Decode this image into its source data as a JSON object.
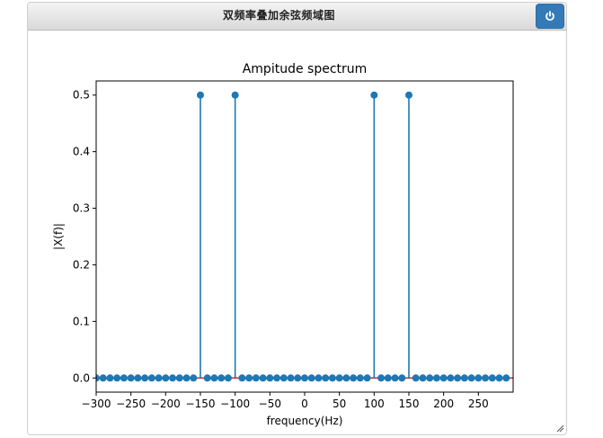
{
  "window": {
    "title": "双频率叠加余弦频域图",
    "power_icon": "power-icon"
  },
  "chart_data": {
    "type": "stem",
    "title": "Ampitude spectrum",
    "xlabel": "frequency(Hz)",
    "ylabel": "|X(f)|",
    "xlim": [
      -300,
      300
    ],
    "ylim": [
      -0.025,
      0.525
    ],
    "xticks": [
      -300,
      -250,
      -200,
      -150,
      -100,
      -50,
      0,
      50,
      100,
      150,
      200,
      250
    ],
    "yticks": [
      0.0,
      0.1,
      0.2,
      0.3,
      0.4,
      0.5
    ],
    "xtick_labels": [
      "−300",
      "−250",
      "−200",
      "−150",
      "−100",
      "−50",
      "0",
      "50",
      "100",
      "150",
      "200",
      "250"
    ],
    "ytick_labels": [
      "0.0",
      "0.1",
      "0.2",
      "0.3",
      "0.4",
      "0.5"
    ],
    "x_start": -300,
    "x_step": 10,
    "x_count": 60,
    "peaks": [
      {
        "x": -150,
        "y": 0.5
      },
      {
        "x": -100,
        "y": 0.5
      },
      {
        "x": 100,
        "y": 0.5
      },
      {
        "x": 150,
        "y": 0.5
      }
    ],
    "stem_color": "#1f77b4",
    "baseline_color": "#d62728",
    "grid": false
  }
}
